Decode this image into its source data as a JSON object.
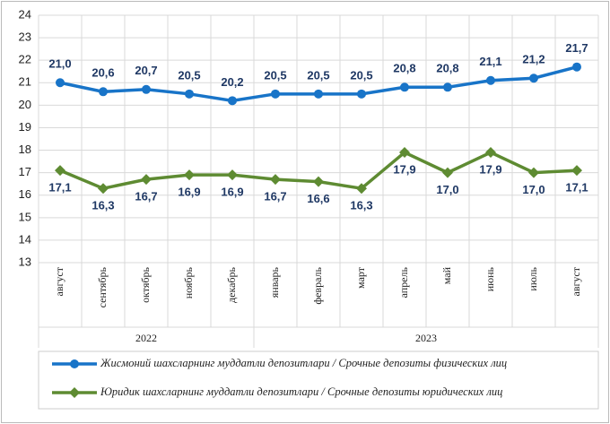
{
  "chart_data": {
    "type": "line",
    "categories": [
      "август",
      "сентябрь",
      "октябрь",
      "ноябрь",
      "декабрь",
      "январь",
      "февраль",
      "март",
      "апрель",
      "май",
      "июнь",
      "июль",
      "август"
    ],
    "year_labels": [
      "2022",
      null,
      null,
      null,
      null,
      "2023",
      null,
      null,
      null,
      null,
      null,
      null,
      null
    ],
    "series": [
      {
        "name": "Жисмоний шахсларнинг  муддатли  депозитлари / Срочные депозиты  физических  лиц",
        "color": "#1874c8",
        "marker": "circle",
        "values": [
          21.0,
          20.6,
          20.7,
          20.5,
          20.2,
          20.5,
          20.5,
          20.5,
          20.8,
          20.8,
          21.1,
          21.2,
          21.7
        ],
        "value_labels": [
          "21,0",
          "20,6",
          "20,7",
          "20,5",
          "20,2",
          "20,5",
          "20,5",
          "20,5",
          "20,8",
          "20,8",
          "21,1",
          "21,2",
          "21,7"
        ]
      },
      {
        "name": "Юридик шахсларнинг  муддатли  депозитлари / Срочные депозиты юридических  лиц",
        "color": "#5e8b32",
        "marker": "diamond",
        "values": [
          17.1,
          16.3,
          16.7,
          16.9,
          16.9,
          16.7,
          16.6,
          16.3,
          17.9,
          17.0,
          17.9,
          17.0,
          17.1
        ],
        "value_labels": [
          "17,1",
          "16,3",
          "16,7",
          "16,9",
          "16,9",
          "16,7",
          "16,6",
          "16,3",
          "17,9",
          "17,0",
          "17,9",
          "17,0",
          "17,1"
        ]
      }
    ],
    "ylim": [
      13,
      24
    ],
    "yticks": [
      13,
      14,
      15,
      16,
      17,
      18,
      19,
      20,
      21,
      22,
      23,
      24
    ],
    "grid": true,
    "legend": "bottom"
  }
}
